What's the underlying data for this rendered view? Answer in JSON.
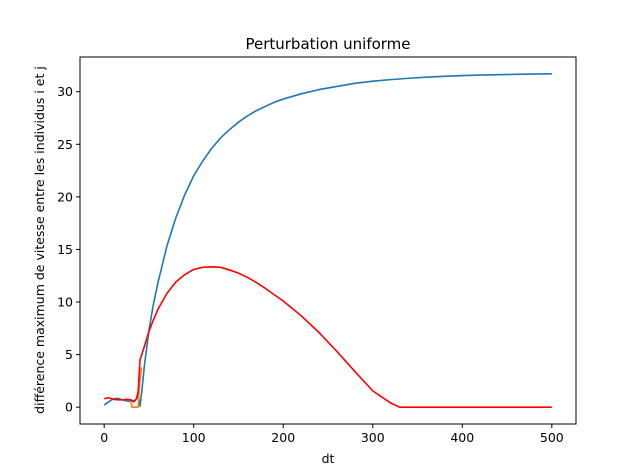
{
  "chart_data": {
    "type": "line",
    "title": "Perturbation uniforme",
    "xlabel": "dt",
    "ylabel": "différence maximum de vitesse entre les individus i et j",
    "xlim": [
      -27,
      527
    ],
    "ylim": [
      -1.6,
      33.3
    ],
    "xticks": [
      0,
      100,
      200,
      300,
      400,
      500
    ],
    "yticks": [
      0,
      5,
      10,
      15,
      20,
      25,
      30
    ],
    "grid": false,
    "legend": "none",
    "series": [
      {
        "color": "#1f77b4",
        "x": [
          0,
          5,
          10,
          15,
          20,
          25,
          30,
          35,
          38,
          40,
          42,
          45,
          50,
          55,
          60,
          70,
          80,
          90,
          100,
          110,
          120,
          130,
          140,
          150,
          160,
          170,
          180,
          190,
          200,
          220,
          240,
          260,
          280,
          300,
          320,
          340,
          360,
          380,
          400,
          420,
          440,
          460,
          480,
          500
        ],
        "y": [
          0.2,
          0.5,
          0.8,
          0.85,
          0.7,
          0.6,
          0.55,
          0.65,
          1.1,
          0.1,
          1.5,
          4.0,
          7.3,
          9.8,
          11.8,
          15.3,
          18.0,
          20.2,
          22.0,
          23.4,
          24.6,
          25.6,
          26.4,
          27.1,
          27.7,
          28.2,
          28.6,
          29.0,
          29.3,
          29.8,
          30.2,
          30.5,
          30.8,
          31.0,
          31.15,
          31.28,
          31.38,
          31.46,
          31.53,
          31.58,
          31.62,
          31.65,
          31.68,
          31.7
        ]
      },
      {
        "color": "#ff7f0e",
        "x": [
          30,
          31,
          33,
          36,
          38,
          39,
          40,
          41,
          42
        ],
        "y": [
          0.6,
          0.0,
          0.0,
          0.0,
          0.0,
          1.5,
          2.5,
          3.2,
          3.8
        ]
      },
      {
        "color": "#ff0000",
        "x": [
          0,
          5,
          10,
          15,
          20,
          25,
          30,
          33,
          36,
          38,
          40,
          42,
          45,
          50,
          55,
          60,
          70,
          80,
          90,
          100,
          110,
          120,
          130,
          140,
          150,
          160,
          170,
          180,
          200,
          220,
          240,
          260,
          280,
          300,
          320,
          330,
          340,
          400,
          450,
          500
        ],
        "y": [
          0.8,
          0.9,
          0.75,
          0.7,
          0.7,
          0.75,
          0.7,
          0.5,
          0.8,
          1.5,
          4.5,
          5.0,
          5.8,
          7.2,
          8.3,
          9.3,
          10.8,
          11.9,
          12.6,
          13.1,
          13.3,
          13.35,
          13.3,
          13.05,
          12.75,
          12.35,
          11.85,
          11.3,
          10.1,
          8.7,
          7.1,
          5.3,
          3.4,
          1.55,
          0.4,
          0.0,
          0.0,
          0.0,
          0.0,
          0.0
        ]
      }
    ]
  }
}
